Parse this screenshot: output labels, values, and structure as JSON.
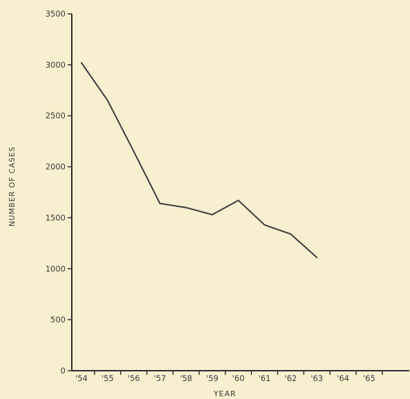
{
  "chart_data": {
    "type": "line",
    "title": "",
    "xlabel": "YEAR",
    "ylabel": "NUMBER OF CASES",
    "categories": [
      "'54",
      "'55",
      "'56",
      "'57",
      "'58",
      "'59",
      "'60",
      "'61",
      "'62",
      "'63",
      "'64",
      "'65"
    ],
    "ylim": [
      0,
      3500
    ],
    "yticks": [
      0,
      500,
      1000,
      1500,
      2000,
      2500,
      3000,
      3500
    ],
    "grid": false,
    "series": [
      {
        "x": [
          "'54",
          "'55",
          "'56",
          "'57",
          "'58",
          "'59",
          "'60",
          "'61",
          "'62",
          "'63"
        ],
        "values": [
          3020,
          2650,
          2150,
          1640,
          1600,
          1530,
          1670,
          1430,
          1340,
          1110
        ]
      }
    ],
    "colors": {
      "line": "#3b3b3b",
      "axis": "#2c2c2c",
      "text": "#3a3a3a",
      "background": "#f7efcf"
    }
  }
}
